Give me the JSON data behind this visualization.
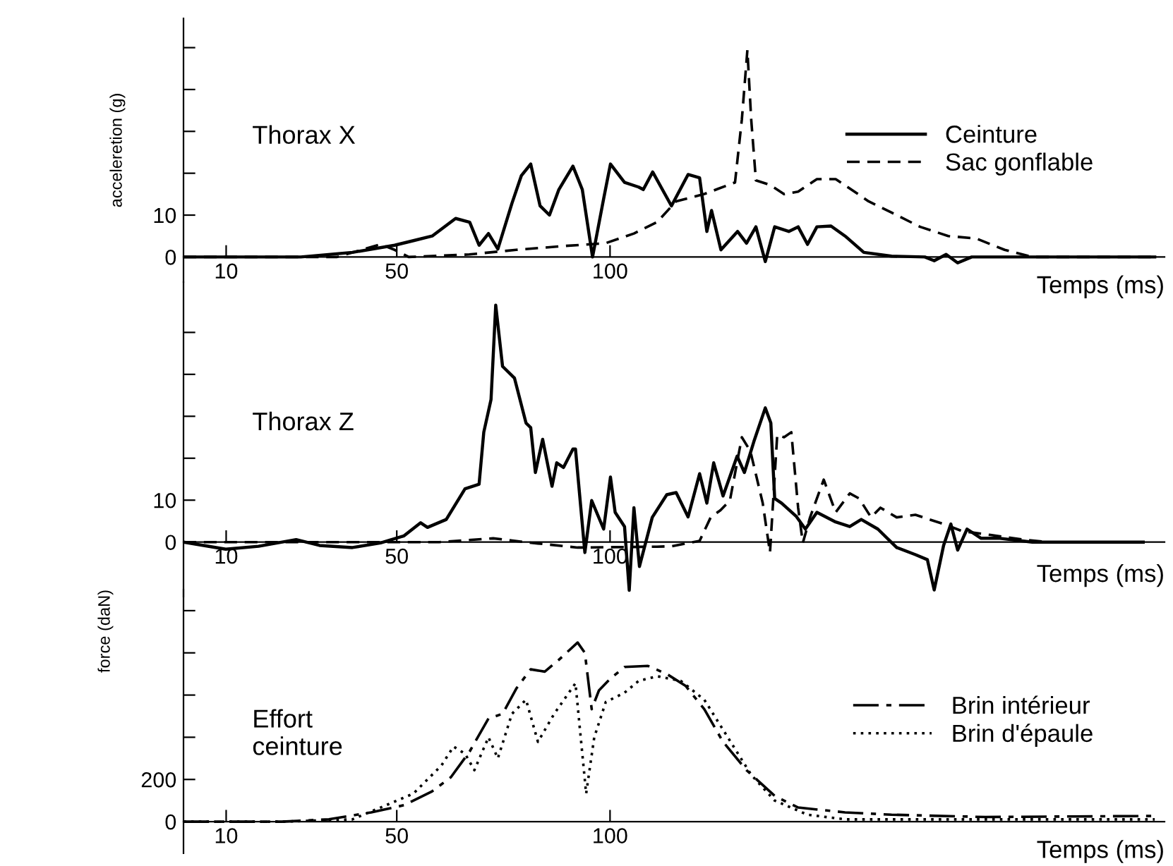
{
  "chart_data": [
    {
      "type": "line",
      "title": "Thorax X",
      "xlabel": "Temps (ms)",
      "ylabel": "acceleretion (g)",
      "xlim": [
        0,
        230
      ],
      "xticks": [
        10,
        50,
        100
      ],
      "ylim": [
        -6,
        57
      ],
      "yticks": [
        0,
        10,
        {
          "value": 20,
          "label": null
        },
        {
          "value": 30,
          "label": null
        },
        {
          "value": 40,
          "label": null
        },
        {
          "value": 50,
          "label": null
        }
      ],
      "grid": false,
      "legend": "right",
      "series": [
        {
          "name": "Ceinture",
          "color": "#000000",
          "line_style": "solid",
          "x": [
            0,
            27.5,
            39.6,
            49.5,
            53.9,
            58.3,
            63.8,
            67.1,
            69.3,
            71.5,
            73.7,
            77,
            79.2,
            81.4,
            83.6,
            85.8,
            88,
            91.3,
            93.5,
            95.9,
            98.5,
            100.1,
            103.4,
            106.7,
            107.8,
            110,
            114.4,
            118.3,
            121,
            122.7,
            123.8,
            126,
            129.9,
            132,
            134.2,
            136.4,
            138.6,
            141.9,
            144.1,
            146.3,
            148.5,
            151.8,
            155.1,
            159.5,
            166,
            173.8,
            176,
            178.8,
            181.5,
            184.8,
            227.7
          ],
          "values": [
            0,
            0,
            1.1,
            2.8,
            3.9,
            5,
            9.2,
            8.3,
            2.8,
            5.6,
            1.9,
            12.8,
            19.4,
            22.2,
            12.2,
            10,
            16.1,
            21.7,
            16.1,
            0,
            13.9,
            22.2,
            17.8,
            16.7,
            16.1,
            20.3,
            12.2,
            19.7,
            18.9,
            6.1,
            11.1,
            1.7,
            6.1,
            3.3,
            7.2,
            -1.1,
            7.2,
            6.1,
            7.2,
            3,
            7.2,
            7.4,
            5,
            1.1,
            0.2,
            0,
            -0.9,
            0.6,
            -1.4,
            0,
            0
          ]
        },
        {
          "name": "Sac gonflable",
          "color": "#000000",
          "line_style": "dashed",
          "x": [
            0,
            36,
            46.2,
            49.5,
            52.8,
            67,
            78,
            89,
            99,
            105.6,
            111,
            115.5,
            122,
            129.3,
            130.9,
            132.2,
            133.1,
            134.2,
            137.5,
            140.8,
            144.1,
            148.5,
            152.9,
            155,
            160.6,
            166,
            172.7,
            179.3,
            185.9,
            192.5,
            199.1,
            227.7
          ],
          "values": [
            0,
            0,
            3,
            1.7,
            0,
            0.6,
            1.7,
            2.6,
            3.3,
            5.6,
            8.3,
            13.3,
            15,
            17.8,
            32.8,
            49.4,
            32.8,
            18.3,
            17.2,
            15,
            15.6,
            18.6,
            18.6,
            17.2,
            13.3,
            10.6,
            7.2,
            5,
            4.4,
            1.7,
            0,
            0
          ]
        }
      ]
    },
    {
      "type": "line",
      "title": "Thorax Z",
      "xlabel": "Temps (ms)",
      "xlim": [
        0,
        230
      ],
      "xticks": [
        10,
        50,
        100
      ],
      "ylim": [
        -13,
        62
      ],
      "yticks": [
        0,
        10,
        {
          "value": 20,
          "label": null
        },
        {
          "value": 30,
          "label": null
        },
        {
          "value": 40,
          "label": null
        },
        {
          "value": 50,
          "label": null
        }
      ],
      "grid": false,
      "series": [
        {
          "color": "#000000",
          "line_style": "solid",
          "x": [
            0,
            9.9,
            17.6,
            26.4,
            31.9,
            39.6,
            46.2,
            51.7,
            55.6,
            57.2,
            61.6,
            66,
            69.3,
            70.4,
            72.1,
            73.2,
            74.8,
            77.6,
            80.3,
            81.4,
            82.5,
            84.2,
            86.4,
            87.5,
            89.1,
            91.3,
            91.9,
            94.1,
            95.7,
            98.5,
            100.1,
            101.2,
            103.4,
            104.5,
            105.6,
            106.9,
            109.9,
            113.3,
            115.5,
            118.3,
            121,
            122.7,
            124.3,
            126.5,
            129.8,
            131.5,
            133.7,
            136.4,
            137.7,
            138.6,
            140.2,
            143.6,
            145.8,
            148.5,
            152.9,
            156.2,
            158.9,
            162.8,
            167.2,
            171.6,
            174.4,
            176,
            178.2,
            179.9,
            181.5,
            183.7,
            187,
            191.4,
            199,
            225
          ],
          "values": [
            0,
            -1.7,
            -1,
            0.6,
            -0.8,
            -1.3,
            -0.2,
            1.5,
            4.6,
            3.5,
            5.4,
            12.7,
            13.8,
            26.2,
            34,
            56.5,
            41.9,
            39.1,
            28.4,
            27.3,
            16.6,
            24.5,
            13.3,
            18.9,
            17.8,
            22.2,
            22.2,
            -2.5,
            9.9,
            3.1,
            15.5,
            7.1,
            3.7,
            -11.5,
            8.2,
            -5.8,
            5.9,
            11.3,
            11.8,
            6,
            16.3,
            9.3,
            18.9,
            11,
            20.5,
            16.6,
            23.9,
            32,
            28.4,
            10.4,
            9.3,
            6.2,
            3.1,
            7.1,
            4.8,
            3.7,
            5.4,
            3.1,
            -1.3,
            -3,
            -4.2,
            -11.4,
            -0.8,
            4.3,
            -1.9,
            3.1,
            0.9,
            0.9,
            0,
            0
          ]
        },
        {
          "color": "#000000",
          "line_style": "dashed",
          "x": [
            0,
            60,
            72.6,
            80,
            92.4,
            111,
            114.4,
            121,
            123.6,
            125.9,
            128.1,
            130.9,
            132.9,
            135.8,
            137.5,
            139.2,
            140.8,
            142.5,
            144.1,
            145.2,
            146.9,
            150.1,
            152.9,
            156.2,
            158.4,
            161.2,
            163.4,
            167.2,
            171.6,
            178.2,
            182.6,
            189.2,
            196.9,
            202.4
          ],
          "values": [
            0,
            0,
            0.9,
            0,
            -1.3,
            -1.1,
            -1,
            0.3,
            5.9,
            7.6,
            9.9,
            25,
            21.7,
            9.3,
            -2.5,
            25.6,
            25,
            26.2,
            8.2,
            -0.2,
            5.9,
            14.9,
            7.1,
            11.6,
            10.4,
            5.9,
            8.2,
            5.9,
            6.5,
            4.3,
            2.6,
            1.7,
            0.6,
            0
          ]
        }
      ]
    },
    {
      "type": "line",
      "title": "Effort\nceinture",
      "xlabel": "Temps (ms)",
      "ylabel": "force (daN)",
      "xlim": [
        0,
        230
      ],
      "xticks": [
        10,
        50,
        100
      ],
      "ylim": [
        -150,
        1100
      ],
      "yticks": [
        0,
        200,
        {
          "value": 400,
          "label": null
        },
        {
          "value": 600,
          "label": null
        },
        {
          "value": 800,
          "label": null
        },
        {
          "value": 1000,
          "label": null
        }
      ],
      "grid": false,
      "legend": "right",
      "series": [
        {
          "name": "Brin intérieur",
          "color": "#000000",
          "line_style": "dashdot",
          "x": [
            0,
            23.1,
            34.1,
            44,
            51.7,
            58.3,
            62.7,
            67.1,
            71.5,
            74.8,
            78.1,
            81.4,
            84.7,
            88,
            92.4,
            94.1,
            95.7,
            97.4,
            100.1,
            103.4,
            108.9,
            113.3,
            117.7,
            122.1,
            126.5,
            132,
            138.6,
            144.1,
            155.1,
            166,
            188,
            227.7
          ],
          "values": [
            0,
            0,
            11,
            44,
            78,
            144,
            211,
            333,
            489,
            511,
            633,
            722,
            711,
            767,
            849,
            800,
            533,
            622,
            678,
            733,
            738,
            700,
            644,
            533,
            378,
            244,
            122,
            67,
            44,
            33,
            22,
            27
          ]
        },
        {
          "name": "Brin d'épaule",
          "color": "#000000",
          "line_style": "dotted",
          "x": [
            0,
            23.1,
            39.6,
            46.2,
            53.9,
            60.5,
            63.3,
            66,
            68.2,
            71.5,
            73.7,
            77,
            80.3,
            83.1,
            86.9,
            91.9,
            94.4,
            96.3,
            99,
            103.4,
            106.7,
            111.1,
            116.6,
            122.1,
            127.6,
            133.1,
            138.6,
            146.3,
            155.1,
            177,
            227.7
          ],
          "values": [
            0,
            0,
            11,
            67,
            133,
            267,
            356,
            322,
            244,
            400,
            300,
            511,
            578,
            378,
            511,
            656,
            133,
            400,
            567,
            611,
            667,
            689,
            667,
            578,
            400,
            222,
            100,
            33,
            11,
            11,
            11
          ]
        }
      ]
    }
  ]
}
